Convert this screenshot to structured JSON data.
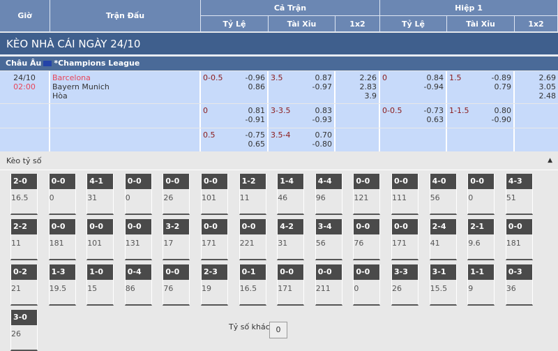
{
  "header": {
    "gio": "Giờ",
    "tran_dau": "Trận Đấu",
    "ca_tran": "Cả Trận",
    "hiep1": "Hiệp 1",
    "ty_le": "Tỷ Lệ",
    "tai_xiu": "Tài Xỉu",
    "x12": "1x2"
  },
  "title": "KÈO NHÀ CÁI NGÀY 24/10",
  "league": {
    "region": "Châu Âu",
    "name": "*Champions League",
    "flag_icon": "eu-flag-icon"
  },
  "match": {
    "date": "24/10",
    "time": "02:00",
    "home": "Barcelona",
    "away": "Bayern Munich",
    "draw": "Hòa"
  },
  "rows": [
    {
      "ft_hdp": "0-0.5",
      "ft_hdp_o": [
        "-0.96",
        "0.86"
      ],
      "ft_ou": "3.5",
      "ft_ou_o": [
        "0.87",
        "-0.97"
      ],
      "ft_1x2": [
        "2.26",
        "2.83",
        "3.9"
      ],
      "h1_hdp": "0",
      "h1_hdp_o": [
        "0.84",
        "-0.94"
      ],
      "h1_ou": "1.5",
      "h1_ou_o": [
        "-0.89",
        "0.79"
      ],
      "h1_1x2": [
        "2.69",
        "3.05",
        "2.48"
      ]
    },
    {
      "ft_hdp": "0",
      "ft_hdp_o": [
        "0.81",
        "-0.91"
      ],
      "ft_ou": "3-3.5",
      "ft_ou_o": [
        "0.83",
        "-0.93"
      ],
      "ft_1x2": [],
      "h1_hdp": "0-0.5",
      "h1_hdp_o": [
        "-0.73",
        "0.63"
      ],
      "h1_ou": "1-1.5",
      "h1_ou_o": [
        "0.80",
        "-0.90"
      ],
      "h1_1x2": []
    },
    {
      "ft_hdp": "0.5",
      "ft_hdp_o": [
        "-0.75",
        "0.65"
      ],
      "ft_ou": "3.5-4",
      "ft_ou_o": [
        "0.70",
        "-0.80"
      ],
      "ft_1x2": [],
      "h1_hdp": "",
      "h1_hdp_o": [],
      "h1_ou": "",
      "h1_ou_o": [],
      "h1_1x2": []
    }
  ],
  "keo_ty_so": {
    "label": "Kèo tỷ số",
    "collapse_icon": "caret-up-icon",
    "scores": [
      [
        "2-0",
        "16.5"
      ],
      [
        "0-0",
        "0"
      ],
      [
        "4-1",
        "31"
      ],
      [
        "0-0",
        "0"
      ],
      [
        "0-0",
        "26"
      ],
      [
        "0-0",
        "101"
      ],
      [
        "1-2",
        "11"
      ],
      [
        "1-4",
        "46"
      ],
      [
        "4-4",
        "96"
      ],
      [
        "0-0",
        "121"
      ],
      [
        "0-0",
        "111"
      ],
      [
        "4-0",
        "56"
      ],
      [
        "0-0",
        "0"
      ],
      [
        "4-3",
        "51"
      ],
      [
        "2-2",
        "11"
      ],
      [
        "0-0",
        "181"
      ],
      [
        "0-0",
        "101"
      ],
      [
        "0-0",
        "131"
      ],
      [
        "3-2",
        "17"
      ],
      [
        "0-0",
        "171"
      ],
      [
        "0-0",
        "221"
      ],
      [
        "4-2",
        "31"
      ],
      [
        "3-4",
        "56"
      ],
      [
        "0-0",
        "76"
      ],
      [
        "0-0",
        "171"
      ],
      [
        "2-4",
        "41"
      ],
      [
        "2-1",
        "9.6"
      ],
      [
        "0-0",
        "181"
      ],
      [
        "0-2",
        "21"
      ],
      [
        "1-3",
        "19.5"
      ],
      [
        "1-0",
        "15"
      ],
      [
        "0-4",
        "86"
      ],
      [
        "0-0",
        "76"
      ],
      [
        "2-3",
        "19"
      ],
      [
        "0-1",
        "16.5"
      ],
      [
        "0-0",
        "171"
      ],
      [
        "0-0",
        "211"
      ],
      [
        "0-0",
        "0"
      ],
      [
        "3-3",
        "26"
      ],
      [
        "3-1",
        "15.5"
      ],
      [
        "1-1",
        "9"
      ],
      [
        "0-3",
        "36"
      ],
      [
        "3-0",
        "26"
      ]
    ],
    "other_label": "Tỷ số khác",
    "other_value": "0"
  },
  "colors": {
    "header": "#6b87b3",
    "title_bar": "#3f5f8d",
    "row_bg": "#c7dafa",
    "odds_line": "#8b1a1a",
    "home_team": "#e8455a"
  }
}
